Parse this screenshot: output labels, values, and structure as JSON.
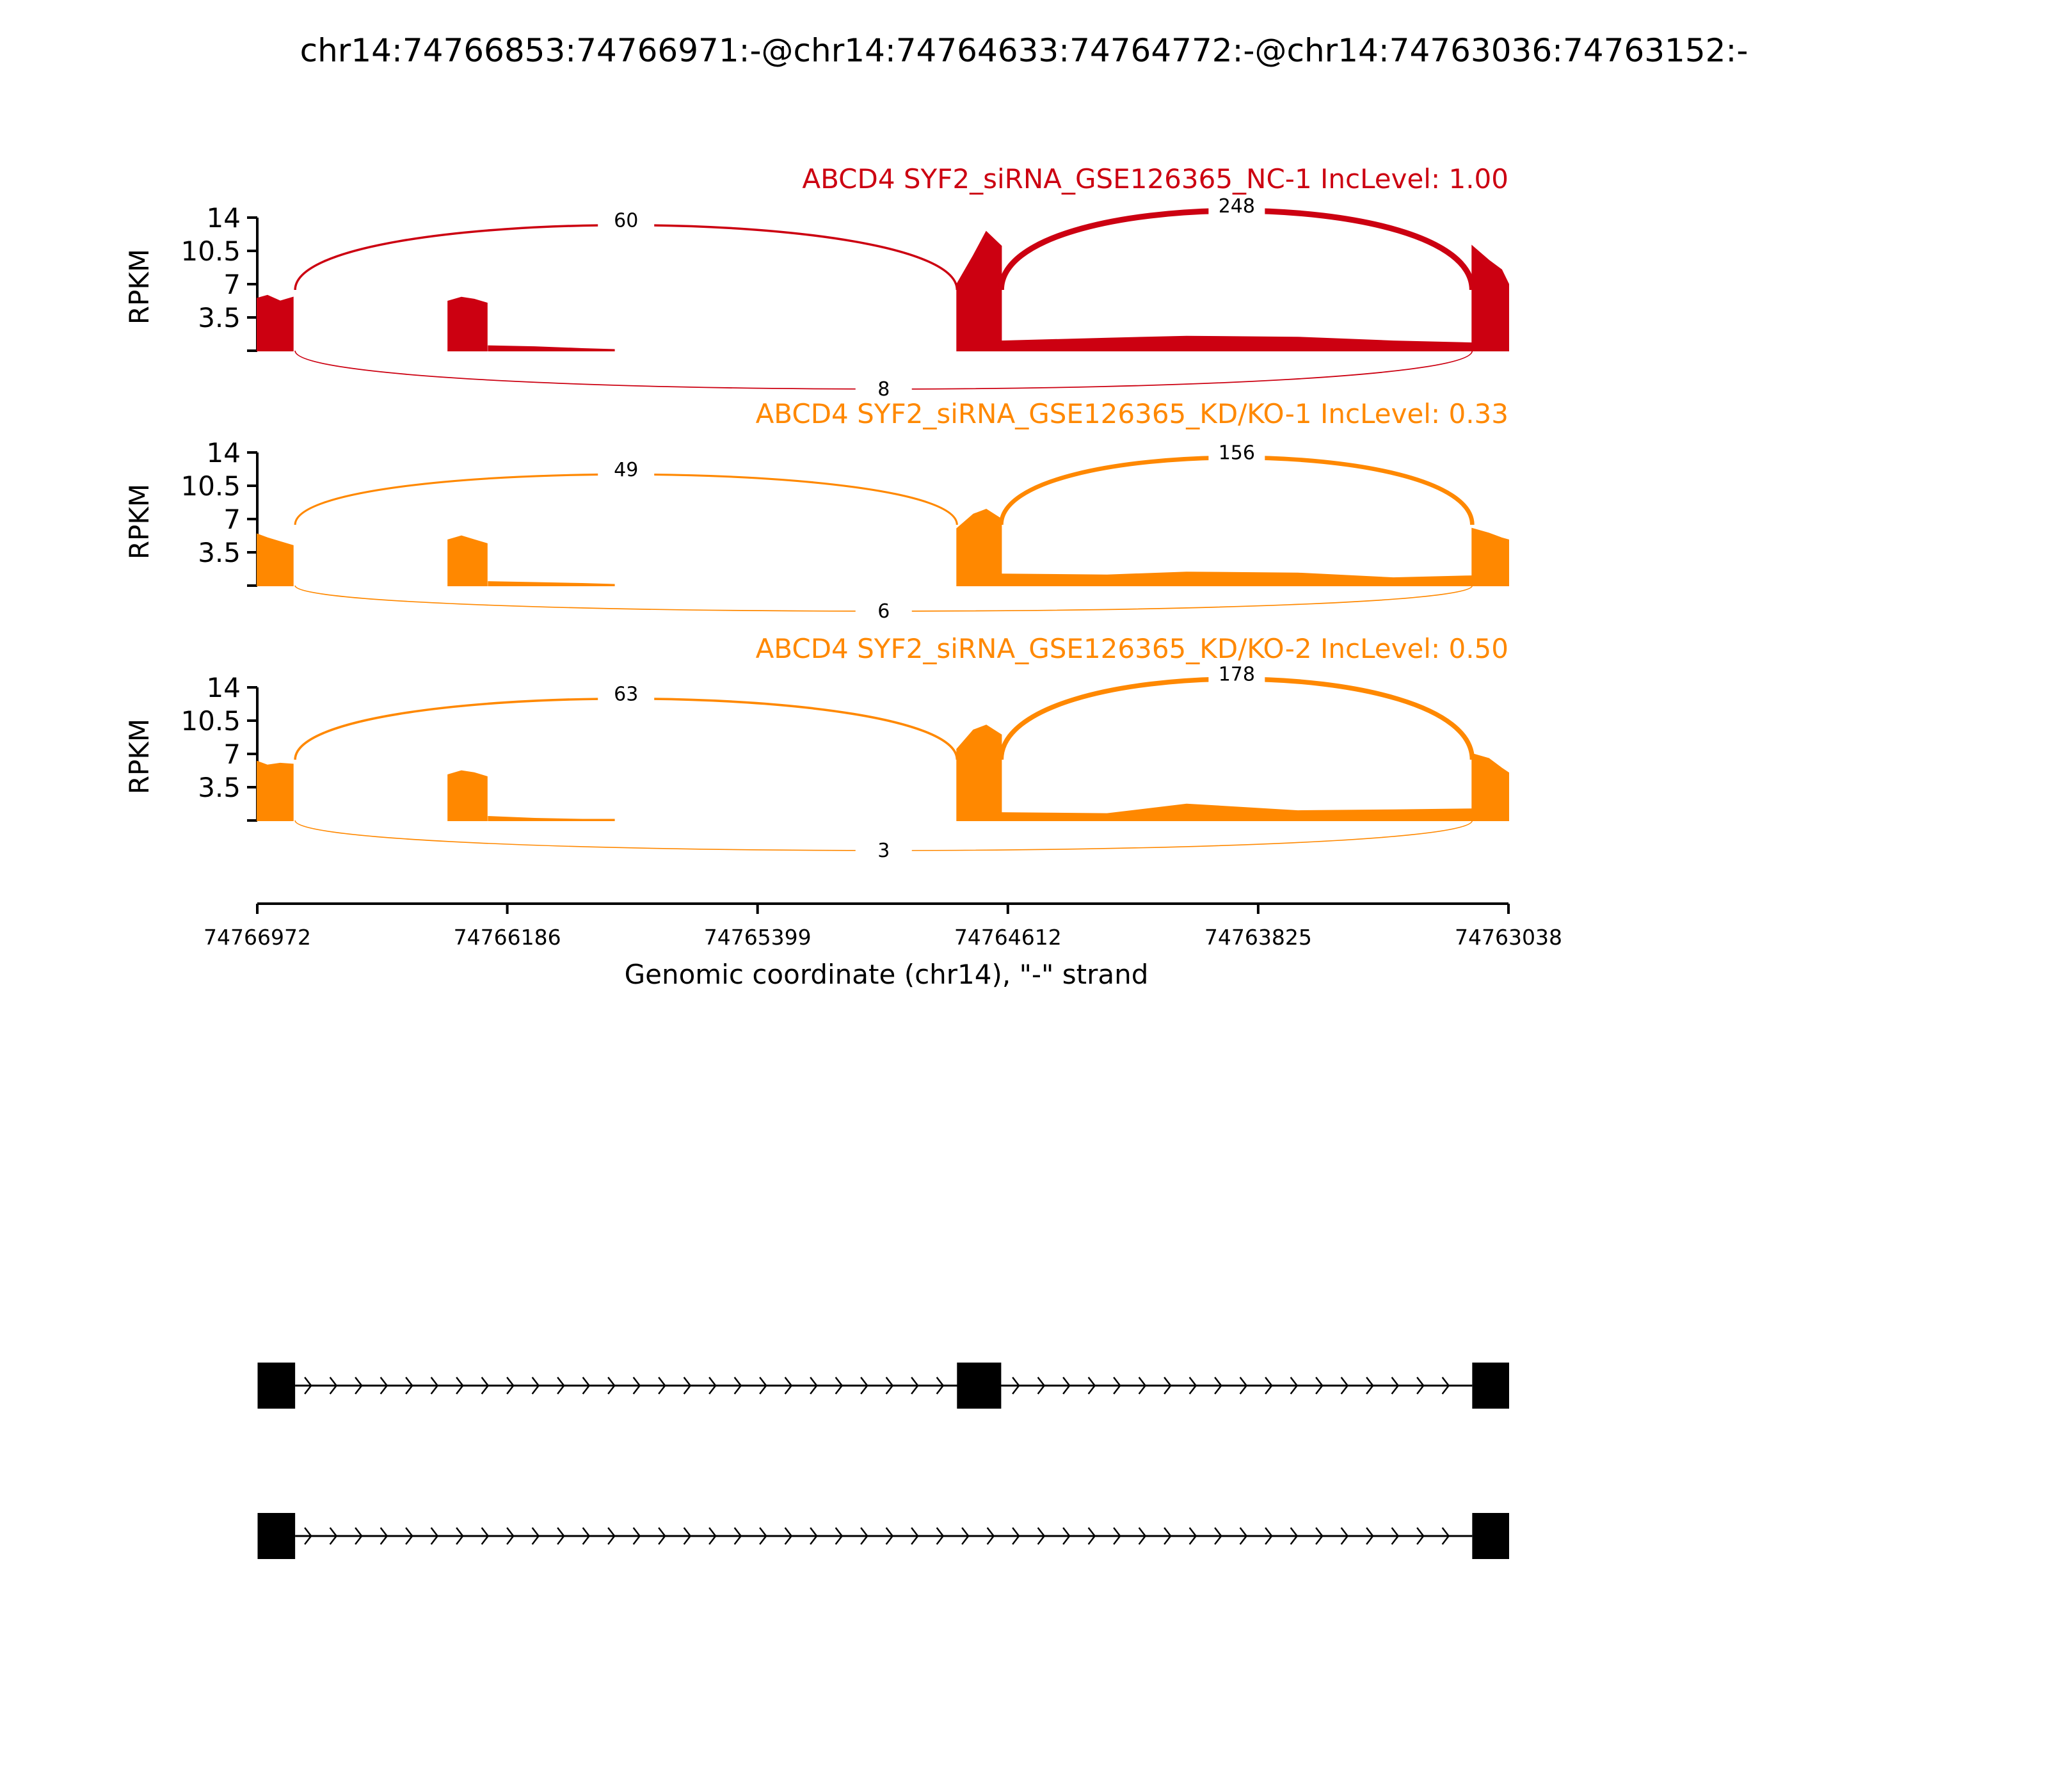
{
  "chart_data": {
    "type": "area",
    "title": "chr14:74766853:74766971:-@chr14:74764633:74764772:-@chr14:74763036:74763152:-",
    "xlabel": "Genomic coordinate (chr14), \"-\" strand",
    "xlim": [
      74766972,
      74763038
    ],
    "x_ticks": [
      "74766972",
      "74766186",
      "74765399",
      "74764612",
      "74763825",
      "74763038"
    ],
    "ylabel": "RPKM",
    "ylim": [
      0,
      14
    ],
    "y_ticks": [
      "3.5",
      "7",
      "10.5",
      "14"
    ],
    "panels": [
      {
        "label": "ABCD4 SYF2_siRNA_GSE126365_NC-1 IncLevel: 1.00",
        "color": "#cc0011",
        "coverage": [
          {
            "x": [
              74766972,
              74766940,
              74766900,
              74766860
            ],
            "y": [
              5.5,
              5.8,
              5.2,
              5.6
            ]
          },
          {
            "x": [
              74766372,
              74766330,
              74766290,
              74766250
            ],
            "y": [
              5.2,
              5.6,
              5.4,
              5.0
            ]
          },
          {
            "x": [
              74766245,
              74766100,
              74765950,
              74765850
            ],
            "y": [
              0.5,
              0.4,
              0.2,
              0.1
            ]
          },
          {
            "x": [
              74764772,
              74764720,
              74764680,
              74764633
            ],
            "y": [
              7.0,
              10.0,
              12.5,
              11.0
            ]
          },
          {
            "x": [
              74764630,
              74764300,
              74764050,
              74763700,
              74763400,
              74763155
            ],
            "y": [
              1.0,
              1.3,
              1.5,
              1.4,
              1.0,
              0.8
            ]
          },
          {
            "x": [
              74763152,
              74763100,
              74763060,
              74763038
            ],
            "y": [
              11.0,
              9.5,
              8.5,
              7.0
            ]
          }
        ],
        "junctions": [
          {
            "from": 74766853,
            "to": 74764772,
            "count": "60",
            "side": "above"
          },
          {
            "from": 74764633,
            "to": 74763152,
            "count": "248",
            "side": "above"
          },
          {
            "from": 74766853,
            "to": 74763152,
            "count": "8",
            "side": "below"
          }
        ]
      },
      {
        "label": "ABCD4 SYF2_siRNA_GSE126365_KD/KO-1 IncLevel: 0.33",
        "color": "#ff8800",
        "coverage": [
          {
            "x": [
              74766972,
              74766940,
              74766900,
              74766860
            ],
            "y": [
              5.4,
              5.0,
              4.6,
              4.2
            ]
          },
          {
            "x": [
              74766372,
              74766330,
              74766290,
              74766250
            ],
            "y": [
              4.8,
              5.2,
              4.8,
              4.4
            ]
          },
          {
            "x": [
              74766245,
              74766100,
              74765950,
              74765850
            ],
            "y": [
              0.4,
              0.3,
              0.2,
              0.1
            ]
          },
          {
            "x": [
              74764772,
              74764720,
              74764680,
              74764633
            ],
            "y": [
              6.0,
              7.5,
              8.0,
              7.0
            ]
          },
          {
            "x": [
              74764630,
              74764300,
              74764050,
              74763700,
              74763400,
              74763155
            ],
            "y": [
              1.2,
              1.1,
              1.4,
              1.3,
              0.8,
              1.0
            ]
          },
          {
            "x": [
              74763152,
              74763100,
              74763060,
              74763038
            ],
            "y": [
              6.0,
              5.5,
              5.0,
              4.8
            ]
          }
        ],
        "junctions": [
          {
            "from": 74766853,
            "to": 74764772,
            "count": "49",
            "side": "above"
          },
          {
            "from": 74764633,
            "to": 74763152,
            "count": "156",
            "side": "above"
          },
          {
            "from": 74766853,
            "to": 74763152,
            "count": "6",
            "side": "below"
          }
        ]
      },
      {
        "label": "ABCD4 SYF2_siRNA_GSE126365_KD/KO-2 IncLevel: 0.50",
        "color": "#ff8800",
        "coverage": [
          {
            "x": [
              74766972,
              74766940,
              74766900,
              74766860
            ],
            "y": [
              6.2,
              5.8,
              6.0,
              5.9
            ]
          },
          {
            "x": [
              74766372,
              74766330,
              74766290,
              74766250
            ],
            "y": [
              4.8,
              5.2,
              5.0,
              4.6
            ]
          },
          {
            "x": [
              74766245,
              74766100,
              74765950,
              74765850
            ],
            "y": [
              0.4,
              0.2,
              0.1,
              0.1
            ]
          },
          {
            "x": [
              74764772,
              74764720,
              74764680,
              74764633
            ],
            "y": [
              7.5,
              9.5,
              10.0,
              9.0
            ]
          },
          {
            "x": [
              74764630,
              74764300,
              74764050,
              74763700,
              74763400,
              74763155
            ],
            "y": [
              0.8,
              0.7,
              1.7,
              1.0,
              1.1,
              1.2
            ]
          },
          {
            "x": [
              74763152,
              74763100,
              74763060,
              74763038
            ],
            "y": [
              7.0,
              6.5,
              5.5,
              5.0
            ]
          }
        ],
        "junctions": [
          {
            "from": 74766853,
            "to": 74764772,
            "count": "63",
            "side": "above"
          },
          {
            "from": 74764633,
            "to": 74763152,
            "count": "178",
            "side": "above"
          },
          {
            "from": 74766853,
            "to": 74763152,
            "count": "3",
            "side": "below"
          }
        ]
      }
    ],
    "isoforms": [
      {
        "exons": [
          [
            74766971,
            74766853
          ],
          [
            74764772,
            74764633
          ],
          [
            74763152,
            74763036
          ]
        ]
      },
      {
        "exons": [
          [
            74766971,
            74766853
          ],
          [
            74763152,
            74763036
          ]
        ]
      }
    ]
  }
}
